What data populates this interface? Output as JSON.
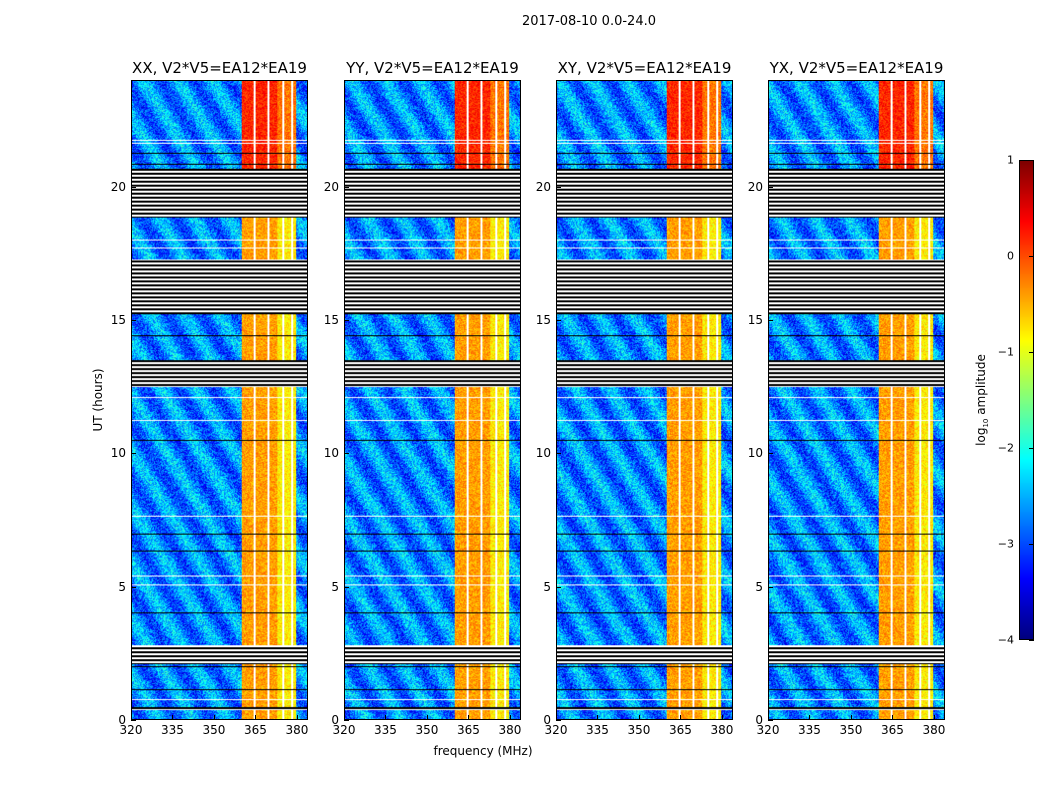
{
  "chart_data": {
    "type": "heatmap",
    "suptitle": "2017-08-10 0.0-24.0",
    "xlabel": "frequency (MHz)",
    "ylabel": "UT (hours)",
    "xlim": [
      320,
      384
    ],
    "ylim": [
      0,
      24
    ],
    "xticks": [
      "320",
      "335",
      "350",
      "365",
      "380"
    ],
    "yticks": [
      "0",
      "5",
      "10",
      "15",
      "20"
    ],
    "panels": [
      {
        "title": "XX, V2*V5=EA12*EA19"
      },
      {
        "title": "YY, V2*V5=EA12*EA19"
      },
      {
        "title": "XY, V2*V5=EA12*EA19"
      },
      {
        "title": "YX, V2*V5=EA12*EA19"
      }
    ],
    "colorbar": {
      "label": "log",
      "label_sub": "10",
      "label_rest": " amplitude",
      "range": [
        -4,
        1
      ],
      "ticks": [
        "−4",
        "−3",
        "−2",
        "−1",
        "0",
        "1"
      ],
      "colormap": "jet"
    },
    "background_level_log10": -2.7,
    "bright_band_mhz": [
      360,
      380
    ],
    "bright_band_level_log10": -0.4,
    "flagged_hours": [
      [
        18.9,
        20.7
      ],
      [
        15.25,
        17.3
      ],
      [
        12.5,
        13.5
      ],
      [
        2.1,
        2.8
      ]
    ]
  }
}
